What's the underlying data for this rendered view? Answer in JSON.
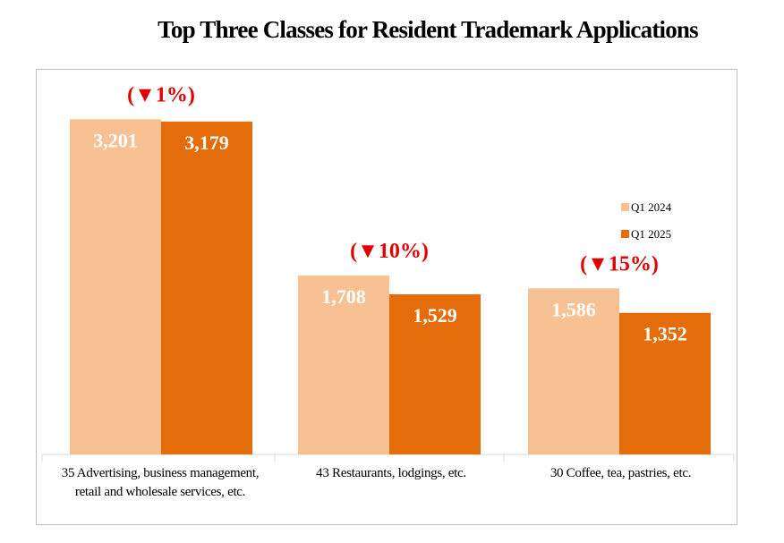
{
  "chart_data": {
    "type": "bar",
    "title": "Top Three Classes for Resident Trademark Applications",
    "categories": [
      [
        "35 Advertising, business management,",
        "retail and wholesale services, etc."
      ],
      [
        "43 Restaurants, lodgings, etc."
      ],
      [
        "30 Coffee, tea, pastries, etc."
      ]
    ],
    "series": [
      {
        "name": "Q1 2024",
        "color": "#f8c193",
        "values": [
          3201,
          1708,
          1586
        ],
        "labels": [
          "3,201",
          "1,708",
          "1,586"
        ]
      },
      {
        "name": "Q1 2025",
        "color": "#e46c0a",
        "values": [
          3179,
          1529,
          1352
        ],
        "labels": [
          "3,179",
          "1,529",
          "1,352"
        ]
      }
    ],
    "annotations": [
      "(▼1%)",
      "(▼10%)",
      "(▼15%)"
    ],
    "ylim": [
      0,
      3400
    ],
    "grid": false,
    "legend_position": "right"
  }
}
